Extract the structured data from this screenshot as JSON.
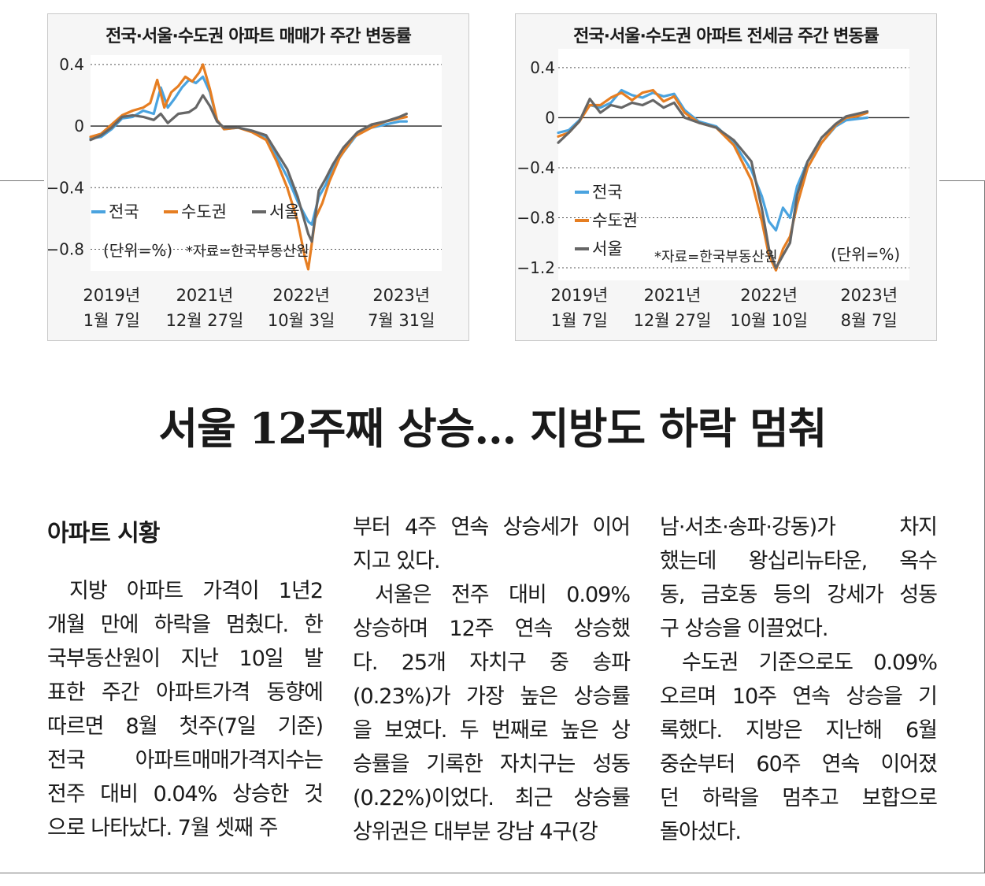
{
  "chart_data": [
    {
      "type": "line",
      "title": "전국·서울·수도권 아파트 매매가 주간 변동률",
      "unit_note": "(단위=%)",
      "source_note": "*자료=한국부동산원",
      "ylim": [
        -0.9,
        0.42
      ],
      "yticks": [
        {
          "v": 0.4,
          "label": "0.4"
        },
        {
          "v": 0,
          "label": "0"
        },
        {
          "v": -0.4,
          "label": "−0.4"
        },
        {
          "v": -0.8,
          "label": "−0.8"
        }
      ],
      "xlabels": [
        {
          "t": 0.06,
          "line1": "2019년",
          "line2": "1월 7일"
        },
        {
          "t": 0.325,
          "line1": "2021년",
          "line2": "12월 27일"
        },
        {
          "t": 0.6,
          "line1": "2022년",
          "line2": "10월 3일"
        },
        {
          "t": 0.885,
          "line1": "2023년",
          "line2": "7월 31일"
        }
      ],
      "grid": true,
      "legend_position": "lower-left",
      "series": [
        {
          "name": "전국",
          "color": "#4aa3df",
          "points": [
            [
              0,
              -0.08
            ],
            [
              0.03,
              -0.07
            ],
            [
              0.06,
              -0.02
            ],
            [
              0.09,
              0.05
            ],
            [
              0.12,
              0.06
            ],
            [
              0.15,
              0.1
            ],
            [
              0.18,
              0.08
            ],
            [
              0.2,
              0.25
            ],
            [
              0.22,
              0.12
            ],
            [
              0.24,
              0.18
            ],
            [
              0.26,
              0.25
            ],
            [
              0.28,
              0.3
            ],
            [
              0.3,
              0.28
            ],
            [
              0.32,
              0.32
            ],
            [
              0.34,
              0.22
            ],
            [
              0.36,
              0.04
            ],
            [
              0.38,
              -0.02
            ],
            [
              0.42,
              -0.01
            ],
            [
              0.46,
              -0.03
            ],
            [
              0.5,
              -0.07
            ],
            [
              0.53,
              -0.2
            ],
            [
              0.56,
              -0.33
            ],
            [
              0.59,
              -0.49
            ],
            [
              0.62,
              -0.62
            ],
            [
              0.63,
              -0.64
            ],
            [
              0.65,
              -0.46
            ],
            [
              0.67,
              -0.38
            ],
            [
              0.69,
              -0.27
            ],
            [
              0.72,
              -0.17
            ],
            [
              0.76,
              -0.05
            ],
            [
              0.8,
              -0.01
            ],
            [
              0.84,
              0.01
            ],
            [
              0.88,
              0.03
            ],
            [
              0.9,
              0.03
            ]
          ]
        },
        {
          "name": "수도권",
          "color": "#e67e22",
          "points": [
            [
              0,
              -0.07
            ],
            [
              0.03,
              -0.05
            ],
            [
              0.06,
              0.01
            ],
            [
              0.09,
              0.07
            ],
            [
              0.12,
              0.1
            ],
            [
              0.15,
              0.12
            ],
            [
              0.17,
              0.15
            ],
            [
              0.19,
              0.3
            ],
            [
              0.21,
              0.12
            ],
            [
              0.23,
              0.22
            ],
            [
              0.25,
              0.26
            ],
            [
              0.27,
              0.32
            ],
            [
              0.29,
              0.29
            ],
            [
              0.31,
              0.35
            ],
            [
              0.32,
              0.4
            ],
            [
              0.34,
              0.24
            ],
            [
              0.36,
              0.04
            ],
            [
              0.38,
              -0.02
            ],
            [
              0.42,
              -0.01
            ],
            [
              0.46,
              -0.04
            ],
            [
              0.5,
              -0.09
            ],
            [
              0.53,
              -0.23
            ],
            [
              0.56,
              -0.4
            ],
            [
              0.59,
              -0.62
            ],
            [
              0.61,
              -0.85
            ],
            [
              0.62,
              -0.93
            ],
            [
              0.64,
              -0.6
            ],
            [
              0.66,
              -0.5
            ],
            [
              0.68,
              -0.36
            ],
            [
              0.71,
              -0.2
            ],
            [
              0.75,
              -0.07
            ],
            [
              0.8,
              -0.01
            ],
            [
              0.84,
              0.03
            ],
            [
              0.88,
              0.05
            ],
            [
              0.9,
              0.06
            ]
          ]
        },
        {
          "name": "서울",
          "color": "#666666",
          "points": [
            [
              0,
              -0.09
            ],
            [
              0.03,
              -0.06
            ],
            [
              0.06,
              -0.01
            ],
            [
              0.09,
              0.06
            ],
            [
              0.12,
              0.07
            ],
            [
              0.15,
              0.06
            ],
            [
              0.18,
              0.04
            ],
            [
              0.2,
              0.08
            ],
            [
              0.22,
              0.02
            ],
            [
              0.25,
              0.08
            ],
            [
              0.28,
              0.09
            ],
            [
              0.3,
              0.12
            ],
            [
              0.32,
              0.2
            ],
            [
              0.34,
              0.13
            ],
            [
              0.36,
              0.03
            ],
            [
              0.38,
              -0.01
            ],
            [
              0.42,
              -0.01
            ],
            [
              0.46,
              -0.03
            ],
            [
              0.5,
              -0.06
            ],
            [
              0.53,
              -0.17
            ],
            [
              0.56,
              -0.28
            ],
            [
              0.59,
              -0.46
            ],
            [
              0.62,
              -0.7
            ],
            [
              0.63,
              -0.75
            ],
            [
              0.65,
              -0.42
            ],
            [
              0.67,
              -0.34
            ],
            [
              0.69,
              -0.25
            ],
            [
              0.72,
              -0.14
            ],
            [
              0.76,
              -0.04
            ],
            [
              0.8,
              0.01
            ],
            [
              0.84,
              0.03
            ],
            [
              0.88,
              0.06
            ],
            [
              0.9,
              0.08
            ]
          ]
        }
      ]
    },
    {
      "type": "line",
      "title": "전국·서울·수도권 아파트 전세금 주간 변동률",
      "unit_note": "(단위=%)",
      "source_note": "*자료=한국부동산원",
      "ylim": [
        -1.25,
        0.5
      ],
      "yticks": [
        {
          "v": 0.4,
          "label": "0.4"
        },
        {
          "v": 0,
          "label": "0"
        },
        {
          "v": -0.4,
          "label": "−0.4"
        },
        {
          "v": -0.8,
          "label": "−0.8"
        },
        {
          "v": -1.2,
          "label": "−1.2"
        }
      ],
      "xlabels": [
        {
          "t": 0.06,
          "line1": "2019년",
          "line2": "1월 7일"
        },
        {
          "t": 0.325,
          "line1": "2021년",
          "line2": "12월 27일"
        },
        {
          "t": 0.6,
          "line1": "2022년",
          "line2": "10월 10일"
        },
        {
          "t": 0.885,
          "line1": "2023년",
          "line2": "8월 7일"
        }
      ],
      "grid": true,
      "legend_position": "lower-left",
      "series": [
        {
          "name": "전국",
          "color": "#4aa3df",
          "points": [
            [
              0,
              -0.12
            ],
            [
              0.03,
              -0.1
            ],
            [
              0.06,
              -0.02
            ],
            [
              0.09,
              0.1
            ],
            [
              0.12,
              0.08
            ],
            [
              0.15,
              0.12
            ],
            [
              0.18,
              0.22
            ],
            [
              0.21,
              0.18
            ],
            [
              0.24,
              0.16
            ],
            [
              0.27,
              0.2
            ],
            [
              0.3,
              0.17
            ],
            [
              0.33,
              0.19
            ],
            [
              0.36,
              0.06
            ],
            [
              0.4,
              -0.03
            ],
            [
              0.45,
              -0.07
            ],
            [
              0.5,
              -0.2
            ],
            [
              0.55,
              -0.42
            ],
            [
              0.58,
              -0.63
            ],
            [
              0.6,
              -0.83
            ],
            [
              0.62,
              -0.9
            ],
            [
              0.64,
              -0.72
            ],
            [
              0.66,
              -0.8
            ],
            [
              0.68,
              -0.55
            ],
            [
              0.71,
              -0.35
            ],
            [
              0.75,
              -0.2
            ],
            [
              0.79,
              -0.07
            ],
            [
              0.82,
              -0.02
            ],
            [
              0.85,
              -0.01
            ],
            [
              0.88,
              0.0
            ]
          ]
        },
        {
          "name": "수도권",
          "color": "#e67e22",
          "points": [
            [
              0,
              -0.15
            ],
            [
              0.03,
              -0.12
            ],
            [
              0.06,
              -0.03
            ],
            [
              0.09,
              0.1
            ],
            [
              0.12,
              0.1
            ],
            [
              0.15,
              0.16
            ],
            [
              0.18,
              0.2
            ],
            [
              0.21,
              0.14
            ],
            [
              0.24,
              0.2
            ],
            [
              0.27,
              0.22
            ],
            [
              0.3,
              0.13
            ],
            [
              0.33,
              0.17
            ],
            [
              0.36,
              0.04
            ],
            [
              0.4,
              -0.04
            ],
            [
              0.45,
              -0.08
            ],
            [
              0.5,
              -0.22
            ],
            [
              0.55,
              -0.5
            ],
            [
              0.58,
              -0.83
            ],
            [
              0.6,
              -1.1
            ],
            [
              0.62,
              -1.22
            ],
            [
              0.64,
              -1.05
            ],
            [
              0.66,
              -0.95
            ],
            [
              0.68,
              -0.7
            ],
            [
              0.71,
              -0.4
            ],
            [
              0.75,
              -0.2
            ],
            [
              0.79,
              -0.06
            ],
            [
              0.82,
              0.0
            ],
            [
              0.85,
              0.01
            ],
            [
              0.88,
              0.04
            ]
          ]
        },
        {
          "name": "서울",
          "color": "#666666",
          "points": [
            [
              0,
              -0.2
            ],
            [
              0.03,
              -0.12
            ],
            [
              0.06,
              -0.03
            ],
            [
              0.09,
              0.15
            ],
            [
              0.12,
              0.04
            ],
            [
              0.15,
              0.1
            ],
            [
              0.18,
              0.08
            ],
            [
              0.21,
              0.12
            ],
            [
              0.24,
              0.1
            ],
            [
              0.27,
              0.14
            ],
            [
              0.3,
              0.08
            ],
            [
              0.33,
              0.12
            ],
            [
              0.36,
              0.0
            ],
            [
              0.4,
              -0.04
            ],
            [
              0.45,
              -0.08
            ],
            [
              0.5,
              -0.18
            ],
            [
              0.55,
              -0.35
            ],
            [
              0.58,
              -0.73
            ],
            [
              0.6,
              -1.05
            ],
            [
              0.62,
              -1.2
            ],
            [
              0.64,
              -1.1
            ],
            [
              0.66,
              -1.0
            ],
            [
              0.68,
              -0.62
            ],
            [
              0.71,
              -0.35
            ],
            [
              0.75,
              -0.16
            ],
            [
              0.79,
              -0.05
            ],
            [
              0.82,
              0.01
            ],
            [
              0.85,
              0.03
            ],
            [
              0.88,
              0.05
            ]
          ]
        }
      ]
    }
  ],
  "article": {
    "headline": "서울 12주째 상승… 지방도 하락 멈춰",
    "section": "아파트 시황",
    "col1": [
      "지방 아파트 가격이 1년2",
      "개월 만에 하락을 멈췄다. 한",
      "국부동산원이 지난 10일 발",
      "표한 주간 아파트가격 동향에",
      "따르면 8월 첫주(7일 기준)",
      "전국 아파트매매가격지수는",
      "전주 대비 0.04% 상승한 것",
      "으로 나타났다. 7월 셋째 주"
    ],
    "col2a": [
      "부터 4주 연속 상승세가 이어",
      "지고 있다."
    ],
    "col2b": [
      "서울은 전주 대비 0.09%",
      "상승하며 12주 연속 상승했",
      "다. 25개 자치구 중 송파",
      "(0.23%)가 가장 높은 상승률",
      "을 보였다. 두 번째로 높은 상",
      "승률을 기록한 자치구는 성동",
      "(0.22%)이었다. 최근 상승률",
      "상위권은 대부분 강남 4구(강"
    ],
    "col3a": [
      "남·서초·송파·강동)가 차지",
      "했는데 왕십리뉴타운, 옥수",
      "동, 금호동 등의 강세가 성동",
      "구 상승을 이끌었다."
    ],
    "col3b": [
      "수도권 기준으로도 0.09%",
      "오르며 10주 연속 상승을 기",
      "록했다. 지방은 지난해 6월",
      "중순부터 60주 연속 이어졌",
      "던 하락을 멈추고 보합으로",
      "돌아섰다."
    ]
  }
}
